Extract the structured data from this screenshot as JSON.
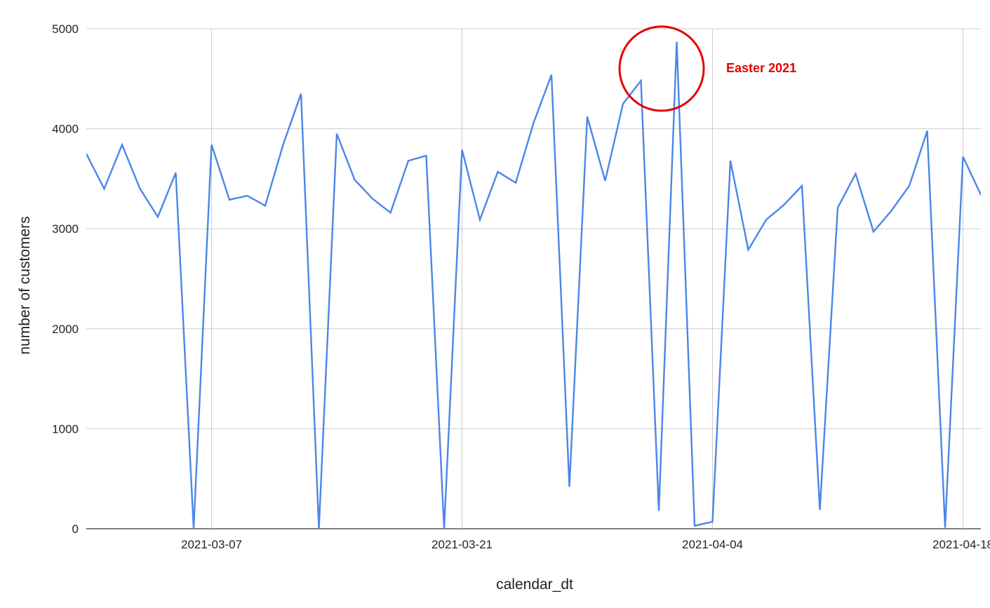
{
  "chart_data": {
    "type": "line",
    "xlabel": "calendar_dt",
    "ylabel": "number of customers",
    "ylim": [
      0,
      5000
    ],
    "xlim": [
      "2021-02-28",
      "2021-04-19"
    ],
    "y_ticks": [
      0,
      1000,
      2000,
      3000,
      4000,
      5000
    ],
    "x_ticks": [
      "2021-03-07",
      "2021-03-21",
      "2021-04-04",
      "2021-04-18"
    ],
    "grid": true,
    "legend": "none",
    "series": [
      {
        "color": "#4a86e8",
        "x": [
          "2021-02-28",
          "2021-03-01",
          "2021-03-02",
          "2021-03-03",
          "2021-03-04",
          "2021-03-05",
          "2021-03-06",
          "2021-03-07",
          "2021-03-08",
          "2021-03-09",
          "2021-03-10",
          "2021-03-11",
          "2021-03-12",
          "2021-03-13",
          "2021-03-14",
          "2021-03-15",
          "2021-03-16",
          "2021-03-17",
          "2021-03-18",
          "2021-03-19",
          "2021-03-20",
          "2021-03-21",
          "2021-03-22",
          "2021-03-23",
          "2021-03-24",
          "2021-03-25",
          "2021-03-26",
          "2021-03-27",
          "2021-03-28",
          "2021-03-29",
          "2021-03-30",
          "2021-03-31",
          "2021-04-01",
          "2021-04-02",
          "2021-04-03",
          "2021-04-04",
          "2021-04-05",
          "2021-04-06",
          "2021-04-07",
          "2021-04-08",
          "2021-04-09",
          "2021-04-10",
          "2021-04-11",
          "2021-04-12",
          "2021-04-13",
          "2021-04-14",
          "2021-04-15",
          "2021-04-16",
          "2021-04-17",
          "2021-04-18",
          "2021-04-19",
          "2021-04-20"
        ],
        "values": [
          3750,
          3400,
          3840,
          3400,
          3120,
          3560,
          0,
          3840,
          3290,
          3330,
          3230,
          3840,
          4350,
          0,
          3950,
          3490,
          3300,
          3160,
          3680,
          3730,
          0,
          3790,
          3090,
          3570,
          3460,
          4060,
          4540,
          420,
          4120,
          3480,
          4250,
          4480,
          180,
          4870,
          30,
          70,
          3680,
          2790,
          3090,
          3240,
          3430,
          190,
          3210,
          3550,
          2970,
          3180,
          3430,
          3980,
          10,
          3720,
          3340,
          3340
        ]
      }
    ],
    "annotations": [
      {
        "label": "Easter 2021",
        "x": "2021-04-01",
        "y": 4580,
        "color": "#e60000",
        "shape": "circle"
      }
    ]
  }
}
